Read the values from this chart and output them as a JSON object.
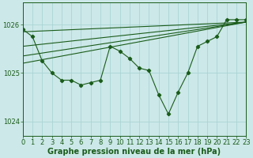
{
  "background_color": "#cce8e8",
  "grid_color": "#aad4d4",
  "line_color": "#1a5c1a",
  "xlim": [
    0,
    23
  ],
  "ylim": [
    1023.7,
    1026.45
  ],
  "yticks": [
    1024,
    1025,
    1026
  ],
  "xticks": [
    0,
    1,
    2,
    3,
    4,
    5,
    6,
    7,
    8,
    9,
    10,
    11,
    12,
    13,
    14,
    15,
    16,
    17,
    18,
    19,
    20,
    21,
    22,
    23
  ],
  "title": "Graphe pression niveau de la mer (hPa)",
  "title_fontsize": 7,
  "tick_fontsize": 6,
  "main_x": [
    0,
    1,
    2,
    3,
    4,
    5,
    6,
    7,
    8,
    9,
    10,
    11,
    12,
    13,
    14,
    15,
    16,
    17,
    18,
    19,
    20,
    21,
    22,
    23
  ],
  "main_y": [
    1025.9,
    1025.75,
    1025.25,
    1025.0,
    1024.85,
    1024.85,
    1024.75,
    1024.8,
    1024.85,
    1025.55,
    1025.45,
    1025.3,
    1025.1,
    1025.05,
    1024.55,
    1024.15,
    1024.6,
    1025.0,
    1025.55,
    1025.65,
    1025.75,
    1026.1,
    1026.1,
    1026.1
  ],
  "line1_x": [
    0,
    23
  ],
  "line1_y": [
    1025.85,
    1026.05
  ],
  "line2_x": [
    0,
    23
  ],
  "line2_y": [
    1025.55,
    1026.05
  ],
  "line3_x": [
    0,
    23
  ],
  "line3_y": [
    1025.35,
    1026.05
  ],
  "line4_x": [
    0,
    23
  ],
  "line4_y": [
    1025.2,
    1026.05
  ]
}
